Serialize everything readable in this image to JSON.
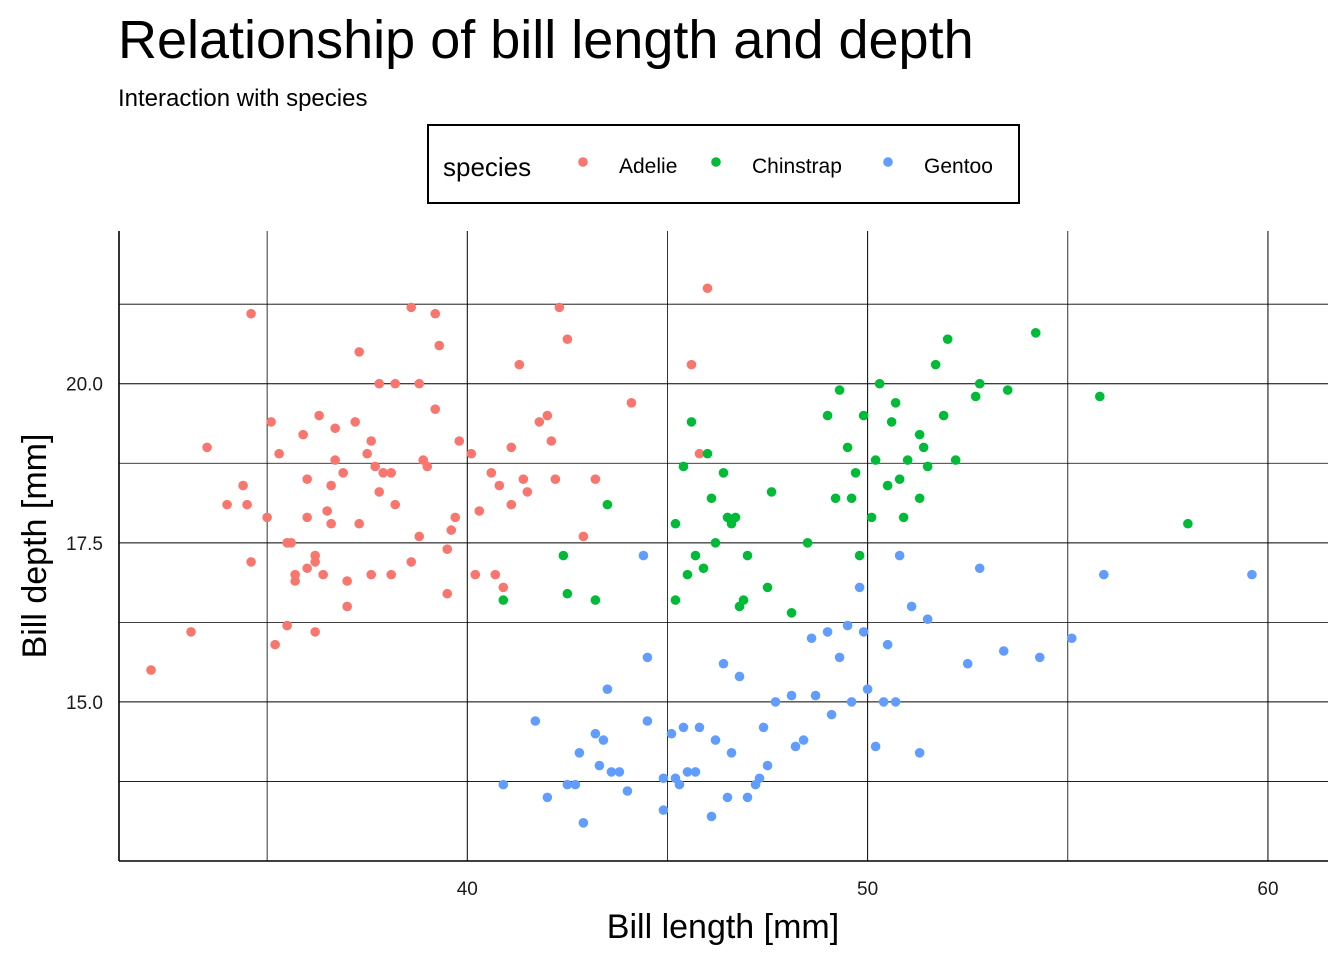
{
  "chart_data": {
    "type": "scatter",
    "title": "Relationship of bill length and depth",
    "subtitle": "Interaction with species",
    "xlabel": "Bill length [mm]",
    "ylabel": "Bill depth [mm]",
    "xlim": [
      31.3,
      61.5
    ],
    "ylim": [
      12.5,
      22.4
    ],
    "x_ticks": [
      40,
      50,
      60
    ],
    "x_tick_labels": [
      "40",
      "50",
      "60"
    ],
    "y_ticks": [
      15.0,
      17.5,
      20.0
    ],
    "y_tick_labels": [
      "15.0",
      "17.5",
      "20.0"
    ],
    "grid": true,
    "legend": {
      "title": "species",
      "position": "top"
    },
    "series": [
      {
        "name": "Adelie",
        "color": "#F8766D",
        "points": [
          [
            32.1,
            15.5
          ],
          [
            33.1,
            16.1
          ],
          [
            33.5,
            19.0
          ],
          [
            34.0,
            18.1
          ],
          [
            34.4,
            18.4
          ],
          [
            34.5,
            18.1
          ],
          [
            34.6,
            21.1
          ],
          [
            34.6,
            17.2
          ],
          [
            35.0,
            17.9
          ],
          [
            35.1,
            19.4
          ],
          [
            35.2,
            15.9
          ],
          [
            35.3,
            18.9
          ],
          [
            35.5,
            17.5
          ],
          [
            35.5,
            16.2
          ],
          [
            35.6,
            17.5
          ],
          [
            35.7,
            16.9
          ],
          [
            35.7,
            17.0
          ],
          [
            35.9,
            19.2
          ],
          [
            36.0,
            18.5
          ],
          [
            36.0,
            17.9
          ],
          [
            36.0,
            17.1
          ],
          [
            36.2,
            17.2
          ],
          [
            36.2,
            17.3
          ],
          [
            36.2,
            16.1
          ],
          [
            36.3,
            19.5
          ],
          [
            36.4,
            17.0
          ],
          [
            36.5,
            18.0
          ],
          [
            36.6,
            17.8
          ],
          [
            36.6,
            18.4
          ],
          [
            36.7,
            18.8
          ],
          [
            36.7,
            19.3
          ],
          [
            36.9,
            18.6
          ],
          [
            37.0,
            16.5
          ],
          [
            37.0,
            16.9
          ],
          [
            37.2,
            19.4
          ],
          [
            37.3,
            20.5
          ],
          [
            37.3,
            17.8
          ],
          [
            37.5,
            18.9
          ],
          [
            37.6,
            19.1
          ],
          [
            37.6,
            17.0
          ],
          [
            37.7,
            18.7
          ],
          [
            37.8,
            18.3
          ],
          [
            37.8,
            20.0
          ],
          [
            37.9,
            18.6
          ],
          [
            38.1,
            18.6
          ],
          [
            38.1,
            17.0
          ],
          [
            38.2,
            18.1
          ],
          [
            38.2,
            20.0
          ],
          [
            38.6,
            21.2
          ],
          [
            38.6,
            17.2
          ],
          [
            38.8,
            20.0
          ],
          [
            38.8,
            17.6
          ],
          [
            38.9,
            18.8
          ],
          [
            39.0,
            18.7
          ],
          [
            39.2,
            19.6
          ],
          [
            39.2,
            21.1
          ],
          [
            39.3,
            20.6
          ],
          [
            39.5,
            16.7
          ],
          [
            39.5,
            17.4
          ],
          [
            39.6,
            17.7
          ],
          [
            39.7,
            17.9
          ],
          [
            39.8,
            19.1
          ],
          [
            40.1,
            18.9
          ],
          [
            40.2,
            17.0
          ],
          [
            40.3,
            18.0
          ],
          [
            40.6,
            18.6
          ],
          [
            40.7,
            17.0
          ],
          [
            40.8,
            18.4
          ],
          [
            40.9,
            16.8
          ],
          [
            41.1,
            18.1
          ],
          [
            41.1,
            19.0
          ],
          [
            41.3,
            20.3
          ],
          [
            41.4,
            18.5
          ],
          [
            41.5,
            18.3
          ],
          [
            41.8,
            19.4
          ],
          [
            42.0,
            19.5
          ],
          [
            42.1,
            19.1
          ],
          [
            42.2,
            18.5
          ],
          [
            42.3,
            21.2
          ],
          [
            42.5,
            20.7
          ],
          [
            42.9,
            17.6
          ],
          [
            43.2,
            18.5
          ],
          [
            44.1,
            19.7
          ],
          [
            45.6,
            20.3
          ],
          [
            45.8,
            18.9
          ],
          [
            46.0,
            21.5
          ]
        ]
      },
      {
        "name": "Chinstrap",
        "color": "#00BA38",
        "points": [
          [
            40.9,
            16.6
          ],
          [
            42.4,
            17.3
          ],
          [
            42.5,
            16.7
          ],
          [
            43.2,
            16.6
          ],
          [
            43.5,
            18.1
          ],
          [
            45.2,
            16.6
          ],
          [
            45.2,
            17.8
          ],
          [
            45.4,
            18.7
          ],
          [
            45.5,
            17.0
          ],
          [
            45.6,
            19.4
          ],
          [
            45.7,
            17.3
          ],
          [
            45.9,
            17.1
          ],
          [
            46.0,
            18.9
          ],
          [
            46.1,
            18.2
          ],
          [
            46.2,
            17.5
          ],
          [
            46.4,
            18.6
          ],
          [
            46.5,
            17.9
          ],
          [
            46.6,
            17.8
          ],
          [
            46.7,
            17.9
          ],
          [
            46.8,
            16.5
          ],
          [
            46.9,
            16.6
          ],
          [
            47.0,
            17.3
          ],
          [
            47.5,
            16.8
          ],
          [
            47.6,
            18.3
          ],
          [
            48.1,
            16.4
          ],
          [
            48.5,
            17.5
          ],
          [
            49.0,
            19.5
          ],
          [
            49.2,
            18.2
          ],
          [
            49.3,
            19.9
          ],
          [
            49.5,
            19.0
          ],
          [
            49.6,
            18.2
          ],
          [
            49.7,
            18.6
          ],
          [
            49.8,
            17.3
          ],
          [
            49.9,
            19.5
          ],
          [
            50.1,
            17.9
          ],
          [
            50.2,
            18.8
          ],
          [
            50.3,
            20.0
          ],
          [
            50.5,
            18.4
          ],
          [
            50.6,
            19.4
          ],
          [
            50.7,
            19.7
          ],
          [
            50.8,
            18.5
          ],
          [
            50.9,
            17.9
          ],
          [
            51.0,
            18.8
          ],
          [
            51.3,
            18.2
          ],
          [
            51.3,
            19.2
          ],
          [
            51.4,
            19.0
          ],
          [
            51.5,
            18.7
          ],
          [
            51.7,
            20.3
          ],
          [
            51.9,
            19.5
          ],
          [
            52.0,
            20.7
          ],
          [
            52.2,
            18.8
          ],
          [
            52.7,
            19.8
          ],
          [
            52.8,
            20.0
          ],
          [
            53.5,
            19.9
          ],
          [
            54.2,
            20.8
          ],
          [
            55.8,
            19.8
          ],
          [
            58.0,
            17.8
          ]
        ]
      },
      {
        "name": "Gentoo",
        "color": "#619CFF",
        "points": [
          [
            40.9,
            13.7
          ],
          [
            41.7,
            14.7
          ],
          [
            42.0,
            13.5
          ],
          [
            42.5,
            13.7
          ],
          [
            42.7,
            13.7
          ],
          [
            42.8,
            14.2
          ],
          [
            42.9,
            13.1
          ],
          [
            43.2,
            14.5
          ],
          [
            43.3,
            14.0
          ],
          [
            43.4,
            14.4
          ],
          [
            43.5,
            15.2
          ],
          [
            43.6,
            13.9
          ],
          [
            43.8,
            13.9
          ],
          [
            44.0,
            13.6
          ],
          [
            44.4,
            17.3
          ],
          [
            44.5,
            15.7
          ],
          [
            44.5,
            14.7
          ],
          [
            44.9,
            13.8
          ],
          [
            44.9,
            13.3
          ],
          [
            45.1,
            14.5
          ],
          [
            45.2,
            13.8
          ],
          [
            45.3,
            13.7
          ],
          [
            45.4,
            14.6
          ],
          [
            45.5,
            13.9
          ],
          [
            45.7,
            13.9
          ],
          [
            45.8,
            14.6
          ],
          [
            46.1,
            13.2
          ],
          [
            46.2,
            14.4
          ],
          [
            46.4,
            15.6
          ],
          [
            46.5,
            13.5
          ],
          [
            46.6,
            14.2
          ],
          [
            46.8,
            15.4
          ],
          [
            47.0,
            13.5
          ],
          [
            47.2,
            13.7
          ],
          [
            47.3,
            13.8
          ],
          [
            47.4,
            14.6
          ],
          [
            47.5,
            14.0
          ],
          [
            47.7,
            15.0
          ],
          [
            48.1,
            15.1
          ],
          [
            48.2,
            14.3
          ],
          [
            48.4,
            14.4
          ],
          [
            48.6,
            16.0
          ],
          [
            48.7,
            15.1
          ],
          [
            49.0,
            16.1
          ],
          [
            49.1,
            14.8
          ],
          [
            49.3,
            15.7
          ],
          [
            49.5,
            16.2
          ],
          [
            49.6,
            15.0
          ],
          [
            49.8,
            16.8
          ],
          [
            49.9,
            16.1
          ],
          [
            50.0,
            15.2
          ],
          [
            50.2,
            14.3
          ],
          [
            50.4,
            15.0
          ],
          [
            50.5,
            15.9
          ],
          [
            50.7,
            15.0
          ],
          [
            50.8,
            17.3
          ],
          [
            51.1,
            16.5
          ],
          [
            51.3,
            14.2
          ],
          [
            51.5,
            16.3
          ],
          [
            52.5,
            15.6
          ],
          [
            52.8,
            17.1
          ],
          [
            53.4,
            15.8
          ],
          [
            54.3,
            15.7
          ],
          [
            55.1,
            16.0
          ],
          [
            55.9,
            17.0
          ],
          [
            59.6,
            17.0
          ]
        ]
      }
    ]
  }
}
